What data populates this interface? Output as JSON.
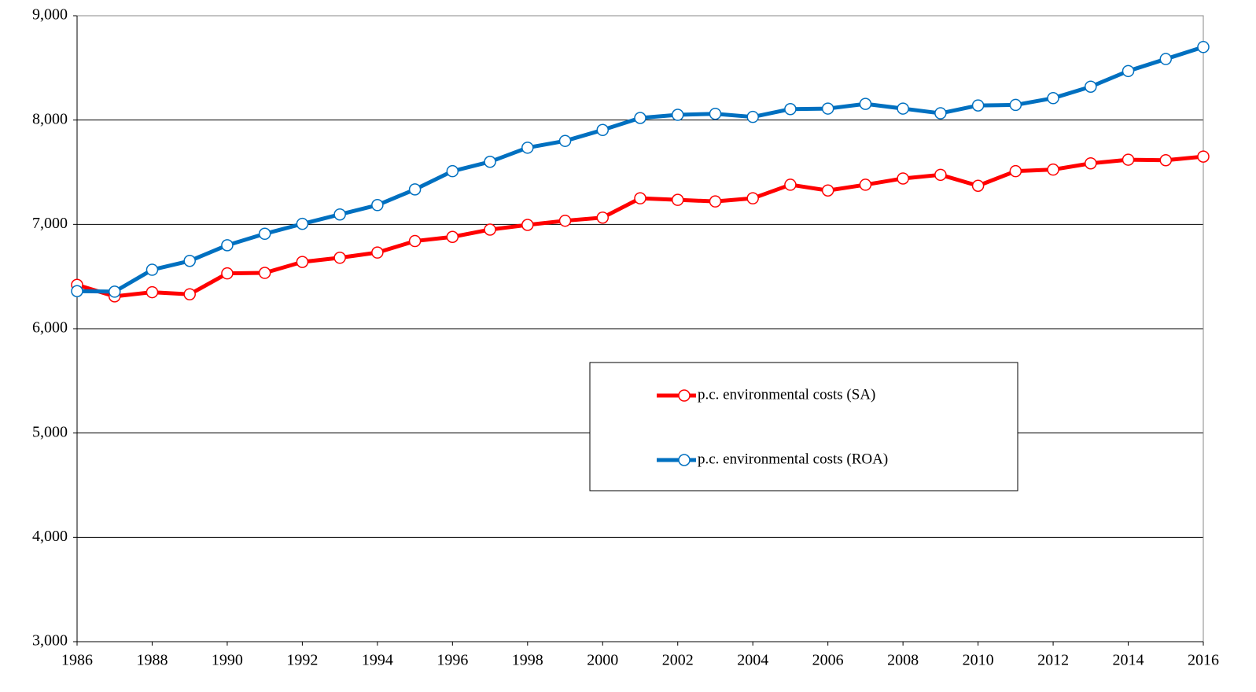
{
  "chart_data": {
    "type": "line",
    "x": [
      1986,
      1987,
      1988,
      1989,
      1990,
      1991,
      1992,
      1993,
      1994,
      1995,
      1996,
      1997,
      1998,
      1999,
      2000,
      2001,
      2002,
      2003,
      2004,
      2005,
      2006,
      2007,
      2008,
      2009,
      2010,
      2011,
      2012,
      2013,
      2014,
      2015,
      2016
    ],
    "series": [
      {
        "name": "p.c. environmental costs (SA)",
        "color": "#ff0000",
        "values": [
          6420,
          6310,
          6350,
          6330,
          6530,
          6535,
          6640,
          6680,
          6730,
          6840,
          6880,
          6950,
          6995,
          7035,
          7065,
          7250,
          7235,
          7220,
          7250,
          7380,
          7325,
          7380,
          7440,
          7475,
          7370,
          7510,
          7525,
          7585,
          7620,
          7615,
          7650
        ]
      },
      {
        "name": "p.c. environmental costs (ROA)",
        "color": "#0070c0",
        "values": [
          6360,
          6355,
          6565,
          6650,
          6800,
          6910,
          7005,
          7095,
          7185,
          7335,
          7510,
          7600,
          7735,
          7800,
          7905,
          8020,
          8050,
          8060,
          8030,
          8105,
          8110,
          8155,
          8110,
          8065,
          8140,
          8145,
          8210,
          8320,
          8470,
          8585,
          8700
        ]
      }
    ],
    "xlim": [
      1986,
      2016
    ],
    "xticks": [
      1986,
      1988,
      1990,
      1992,
      1994,
      1996,
      1998,
      2000,
      2002,
      2004,
      2006,
      2008,
      2010,
      2012,
      2014,
      2016
    ],
    "ylim": [
      3000,
      9000
    ],
    "yticks": [
      {
        "value": 3000,
        "label": "3,000"
      },
      {
        "value": 4000,
        "label": "4,000"
      },
      {
        "value": 5000,
        "label": "5,000"
      },
      {
        "value": 6000,
        "label": "6,000"
      },
      {
        "value": 7000,
        "label": "7,000"
      },
      {
        "value": 8000,
        "label": "8,000"
      },
      {
        "value": 9000,
        "label": "9,000"
      }
    ],
    "grid": true,
    "legend": "center-right"
  }
}
